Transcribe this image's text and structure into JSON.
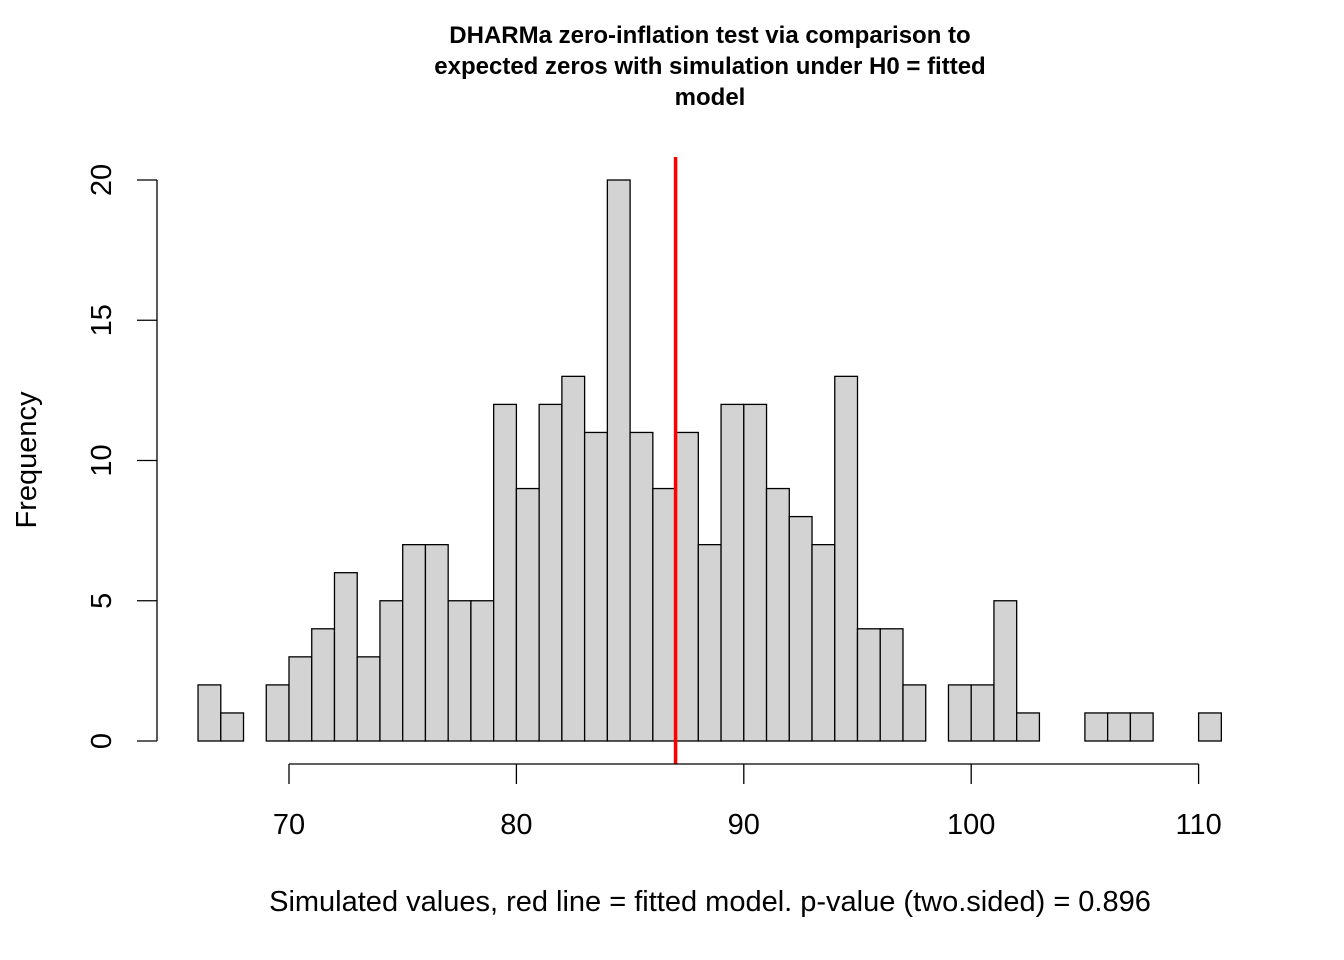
{
  "chart_data": {
    "type": "bar",
    "subtype": "histogram",
    "title": [
      "DHARMa zero-inflation test via comparison to",
      "expected zeros with simulation under H0 = fitted",
      "model"
    ],
    "xlabel": "Simulated values, red line = fitted model. p-value (two.sided) = 0.896",
    "ylabel": "Frequency",
    "xlim": [
      66,
      111
    ],
    "ylim": [
      0,
      20
    ],
    "x_ticks": [
      70,
      80,
      90,
      100,
      110
    ],
    "y_ticks": [
      0,
      5,
      10,
      15,
      20
    ],
    "bin_width": 1,
    "bin_starts": [
      66,
      67,
      68,
      69,
      70,
      71,
      72,
      73,
      74,
      75,
      76,
      77,
      78,
      79,
      80,
      81,
      82,
      83,
      84,
      85,
      86,
      87,
      88,
      89,
      90,
      91,
      92,
      93,
      94,
      95,
      96,
      97,
      98,
      99,
      100,
      101,
      102,
      103,
      104,
      105,
      106,
      107,
      108,
      109,
      110
    ],
    "values": [
      2,
      1,
      0,
      2,
      3,
      4,
      6,
      3,
      5,
      7,
      7,
      5,
      5,
      12,
      9,
      12,
      13,
      11,
      20,
      11,
      9,
      11,
      7,
      12,
      12,
      9,
      8,
      7,
      13,
      4,
      4,
      2,
      0,
      2,
      2,
      5,
      1,
      0,
      0,
      1,
      1,
      1,
      0,
      0,
      1
    ],
    "reference_line": {
      "x": 87,
      "label": "fitted model"
    },
    "bar_color": "#d3d3d3",
    "line_color": "#ff0000",
    "grid": false
  }
}
